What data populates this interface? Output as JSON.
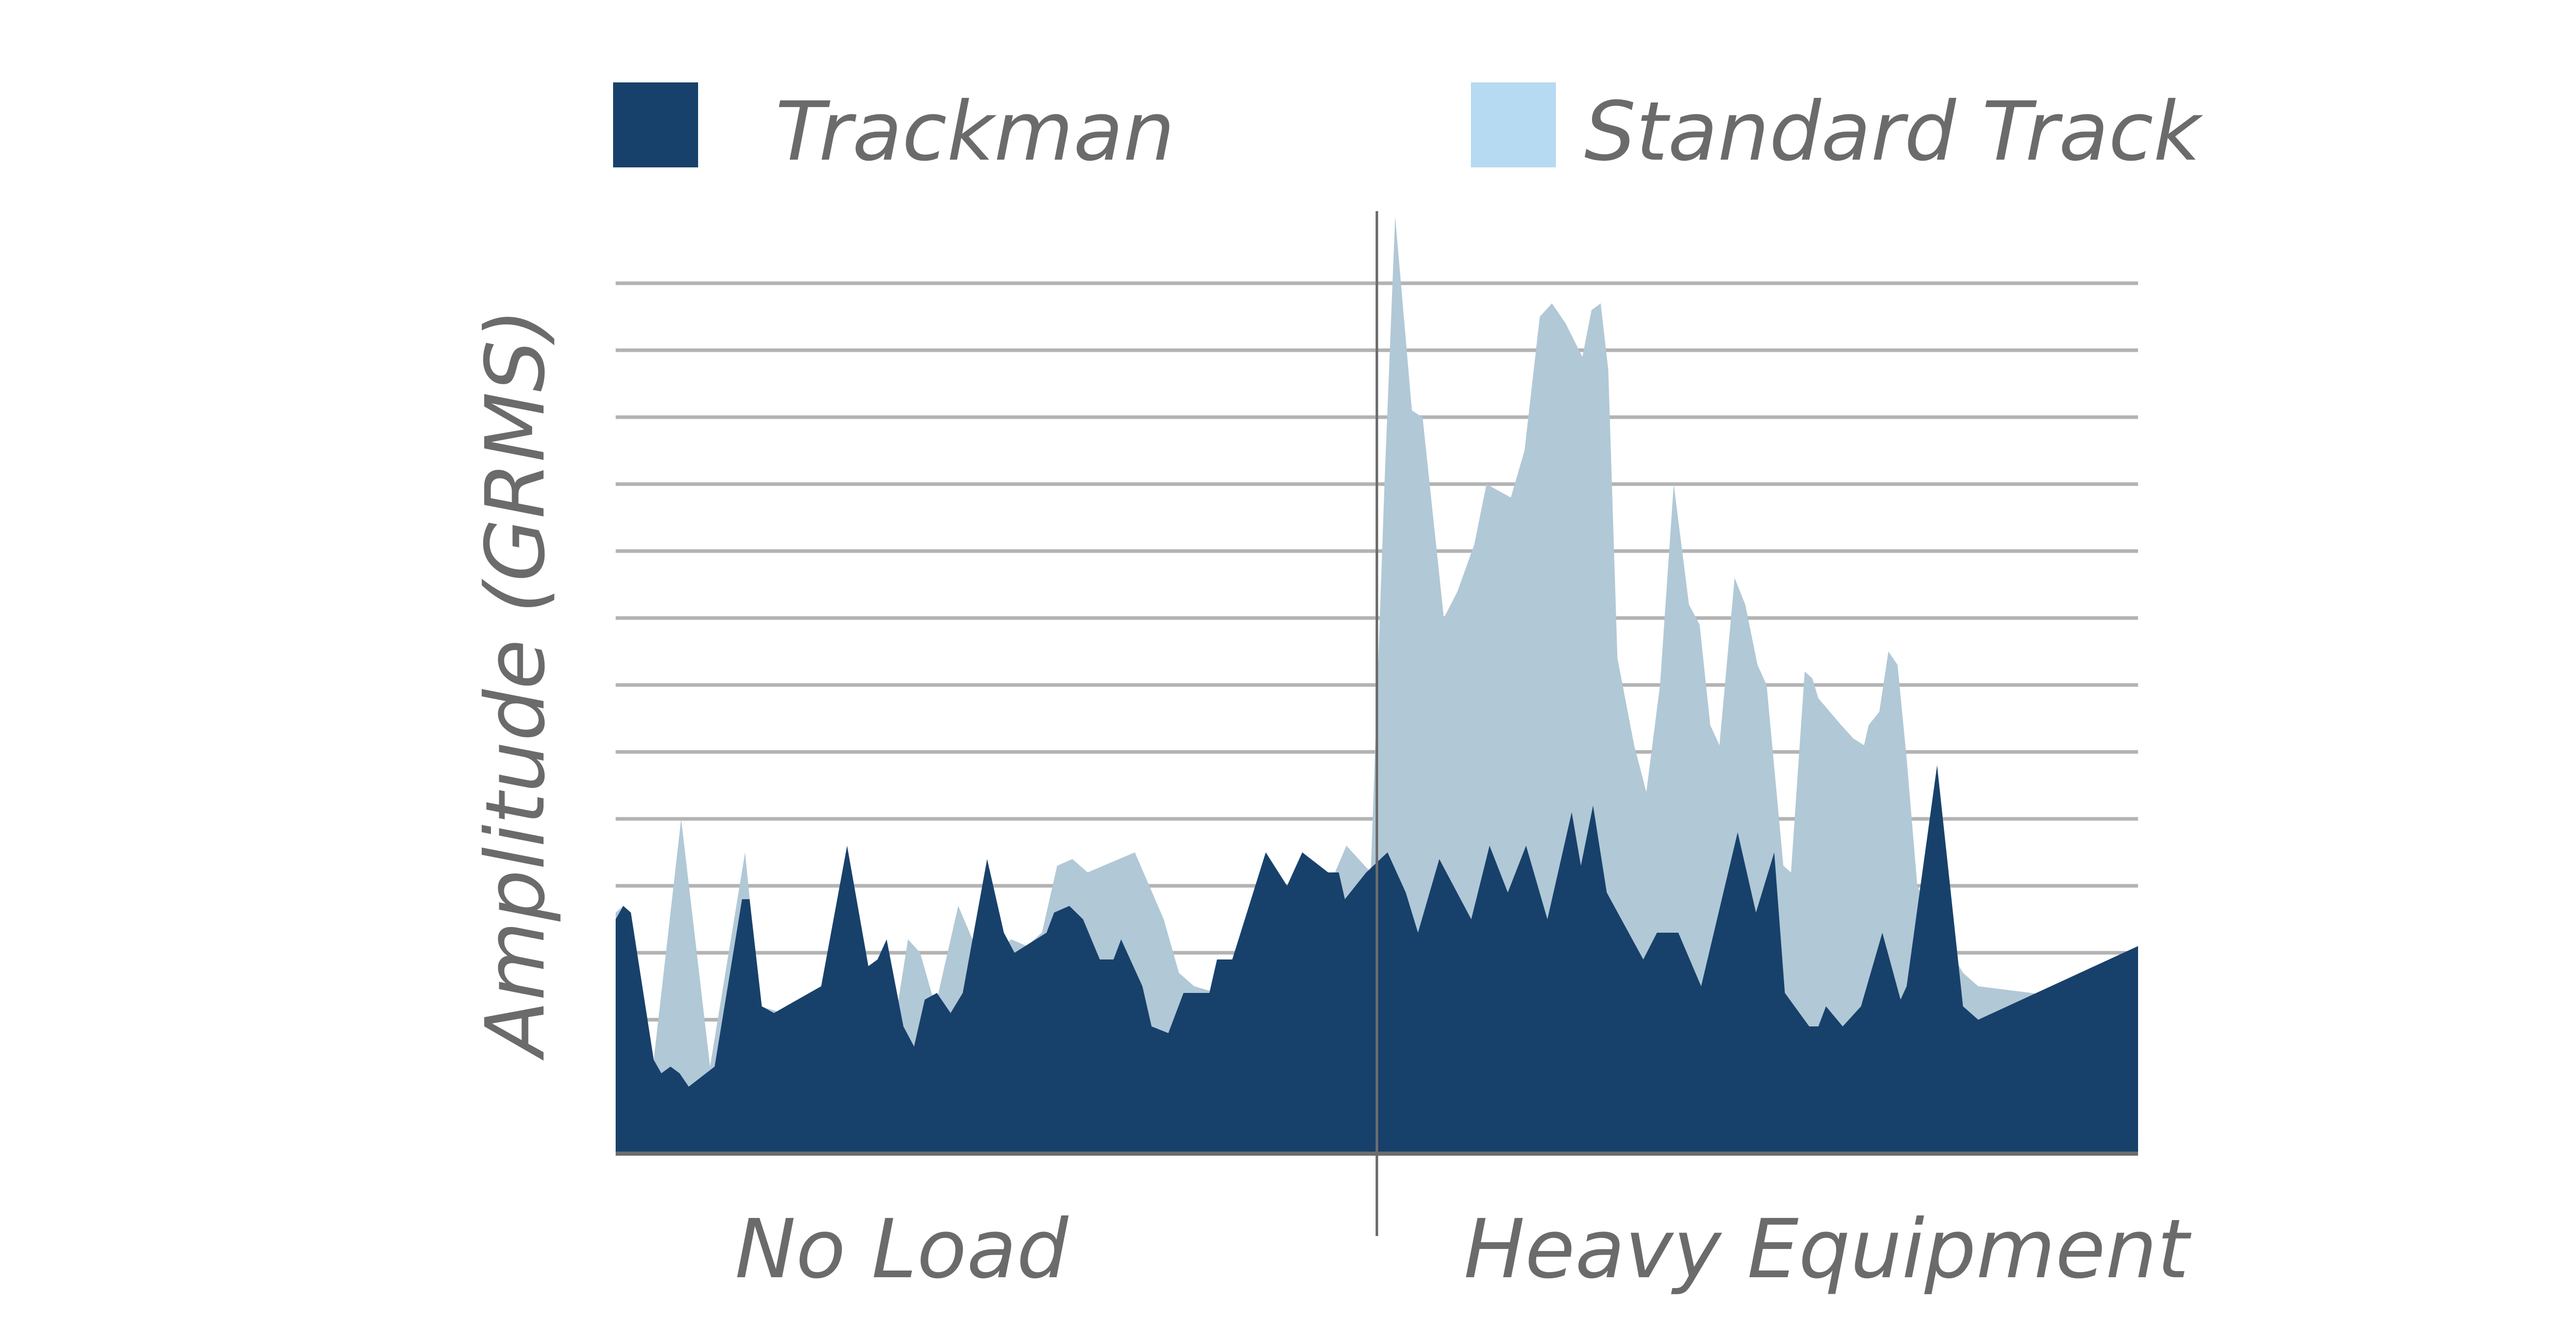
{
  "colors": {
    "trackman": "#17416b",
    "standard_track": "#b1c8d6",
    "standard_track_legend": "#b6daf1",
    "grid": "#b3b3b3",
    "axis": "#6d6d6d",
    "text": "#6b6b6b"
  },
  "chart_data": {
    "type": "area",
    "ylabel": "Amplitude (GRMS)",
    "ylim": [
      0,
      14
    ],
    "grid": true,
    "grid_lines": 13,
    "legend_position": "top",
    "legend": [
      {
        "label": "Trackman",
        "color": "#17416b"
      },
      {
        "label": "Standard Track",
        "color": "#b6daf1"
      }
    ],
    "regions": [
      {
        "label": "No Load",
        "x_range": [
          0,
          50
        ]
      },
      {
        "label": "Heavy Equipment",
        "x_range": [
          50,
          100
        ]
      }
    ],
    "divider_x": 50,
    "series": [
      {
        "name": "Standard Track",
        "points": [
          [
            0,
            3.6
          ],
          [
            0.5,
            3.7
          ],
          [
            1,
            3.6
          ],
          [
            2.5,
            1.4
          ],
          [
            4.3,
            5
          ],
          [
            6.2,
            1.3
          ],
          [
            8.5,
            4.5
          ],
          [
            9.5,
            2.2
          ],
          [
            11,
            2.1
          ],
          [
            13.6,
            2.5
          ],
          [
            15,
            2.8
          ],
          [
            16,
            2.7
          ],
          [
            17.5,
            2.4
          ],
          [
            18.3,
            1.9
          ],
          [
            19.2,
            3.2
          ],
          [
            20,
            3.0
          ],
          [
            21,
            2.2
          ],
          [
            22.5,
            3.7
          ],
          [
            24,
            2.9
          ],
          [
            26,
            3.2
          ],
          [
            27,
            3.1
          ],
          [
            28,
            3.3
          ],
          [
            29,
            4.3
          ],
          [
            30,
            4.4
          ],
          [
            31,
            4.2
          ],
          [
            34.1,
            4.5
          ],
          [
            36,
            3.5
          ],
          [
            37,
            2.7
          ],
          [
            38,
            2.5
          ],
          [
            39.5,
            2.4
          ],
          [
            41,
            2.9
          ],
          [
            42,
            2.6
          ],
          [
            43,
            3.0
          ],
          [
            45,
            3.0
          ],
          [
            48,
            4.6
          ],
          [
            49.6,
            4.2
          ],
          [
            50.5,
            10
          ],
          [
            51.2,
            14
          ],
          [
            52.3,
            11.1
          ],
          [
            53,
            11
          ],
          [
            54.4,
            8
          ],
          [
            55.3,
            8.4
          ],
          [
            56.4,
            9.1
          ],
          [
            57.2,
            10
          ],
          [
            58.8,
            9.8
          ],
          [
            59.7,
            10.5
          ],
          [
            60.7,
            12.5
          ],
          [
            61.5,
            12.7
          ],
          [
            62.4,
            12.4
          ],
          [
            63.5,
            11.9
          ],
          [
            64.1,
            12.6
          ],
          [
            64.7,
            12.7
          ],
          [
            65.2,
            11.7
          ],
          [
            65.8,
            7.4
          ],
          [
            66.9,
            6.1
          ],
          [
            67.7,
            5.4
          ],
          [
            68.6,
            7
          ],
          [
            69.5,
            10
          ],
          [
            70.5,
            8.2
          ],
          [
            71.2,
            7.9
          ],
          [
            71.9,
            6.4
          ],
          [
            72.5,
            6.1
          ],
          [
            73.5,
            8.6
          ],
          [
            74.2,
            8.2
          ],
          [
            75,
            7.3
          ],
          [
            75.6,
            7
          ],
          [
            76.7,
            4.3
          ],
          [
            77.2,
            4.2
          ],
          [
            78.1,
            7.2
          ],
          [
            78.6,
            7.1
          ],
          [
            79,
            6.8
          ],
          [
            80.5,
            6.4
          ],
          [
            81.3,
            6.2
          ],
          [
            82,
            6.1
          ],
          [
            82.3,
            6.4
          ],
          [
            83,
            6.6
          ],
          [
            83.6,
            7.5
          ],
          [
            84.2,
            7.3
          ],
          [
            84.8,
            5.9
          ],
          [
            85.5,
            4
          ],
          [
            87,
            3.3
          ],
          [
            88.5,
            2.7
          ],
          [
            89.5,
            2.5
          ],
          [
            100,
            2.2
          ]
        ]
      },
      {
        "name": "Trackman",
        "points": [
          [
            0,
            3.5
          ],
          [
            0.5,
            3.7
          ],
          [
            1,
            3.6
          ],
          [
            2.5,
            1.4
          ],
          [
            3,
            1.2
          ],
          [
            3.6,
            1.3
          ],
          [
            4.2,
            1.2
          ],
          [
            4.8,
            1.0
          ],
          [
            6.5,
            1.3
          ],
          [
            8.3,
            3.8
          ],
          [
            8.8,
            3.8
          ],
          [
            9.6,
            2.2
          ],
          [
            10.4,
            2.1
          ],
          [
            13.5,
            2.5
          ],
          [
            15.2,
            4.6
          ],
          [
            16.6,
            2.8
          ],
          [
            17.2,
            2.9
          ],
          [
            17.8,
            3.2
          ],
          [
            18.9,
            1.9
          ],
          [
            19.6,
            1.6
          ],
          [
            20.3,
            2.3
          ],
          [
            21.1,
            2.4
          ],
          [
            22,
            2.1
          ],
          [
            22.8,
            2.4
          ],
          [
            24.4,
            4.4
          ],
          [
            25.5,
            3.3
          ],
          [
            26.2,
            3
          ],
          [
            28.3,
            3.3
          ],
          [
            28.8,
            3.6
          ],
          [
            29.8,
            3.7
          ],
          [
            30.7,
            3.5
          ],
          [
            31.8,
            2.9
          ],
          [
            32.7,
            2.9
          ],
          [
            33.2,
            3.2
          ],
          [
            34.6,
            2.5
          ],
          [
            35.2,
            1.9
          ],
          [
            36.3,
            1.8
          ],
          [
            37.3,
            2.4
          ],
          [
            39,
            2.4
          ],
          [
            39.5,
            2.9
          ],
          [
            40.5,
            2.9
          ],
          [
            42.7,
            4.5
          ],
          [
            44.1,
            4
          ],
          [
            45.1,
            4.5
          ],
          [
            46.8,
            4.2
          ],
          [
            47.5,
            4.2
          ],
          [
            47.9,
            3.8
          ],
          [
            49.3,
            4.2
          ],
          [
            50.7,
            4.5
          ],
          [
            51.9,
            3.9
          ],
          [
            52.7,
            3.3
          ],
          [
            54.1,
            4.4
          ],
          [
            56.2,
            3.5
          ],
          [
            57.4,
            4.6
          ],
          [
            58.6,
            3.9
          ],
          [
            59.8,
            4.6
          ],
          [
            61.2,
            3.5
          ],
          [
            62.8,
            5.1
          ],
          [
            63.4,
            4.3
          ],
          [
            64.2,
            5.2
          ],
          [
            65.1,
            3.9
          ],
          [
            67.5,
            2.9
          ],
          [
            68.4,
            3.3
          ],
          [
            69.8,
            3.3
          ],
          [
            71.3,
            2.5
          ],
          [
            73.7,
            4.8
          ],
          [
            74.9,
            3.6
          ],
          [
            76.1,
            4.5
          ],
          [
            76.8,
            2.4
          ],
          [
            78.4,
            1.9
          ],
          [
            79,
            1.9
          ],
          [
            79.5,
            2.2
          ],
          [
            80.6,
            1.9
          ],
          [
            81.8,
            2.2
          ],
          [
            83.2,
            3.3
          ],
          [
            84.4,
            2.3
          ],
          [
            84.8,
            2.5
          ],
          [
            86.8,
            5.8
          ],
          [
            88.5,
            2.2
          ],
          [
            89.5,
            2.0
          ],
          [
            100,
            3.1
          ]
        ]
      }
    ]
  },
  "labels": {
    "legend_trackman": "Trackman",
    "legend_standard": "Standard Track",
    "ylabel": "Amplitude (GRMS)",
    "xlabel_left": "No Load",
    "xlabel_right": "Heavy Equipment"
  }
}
